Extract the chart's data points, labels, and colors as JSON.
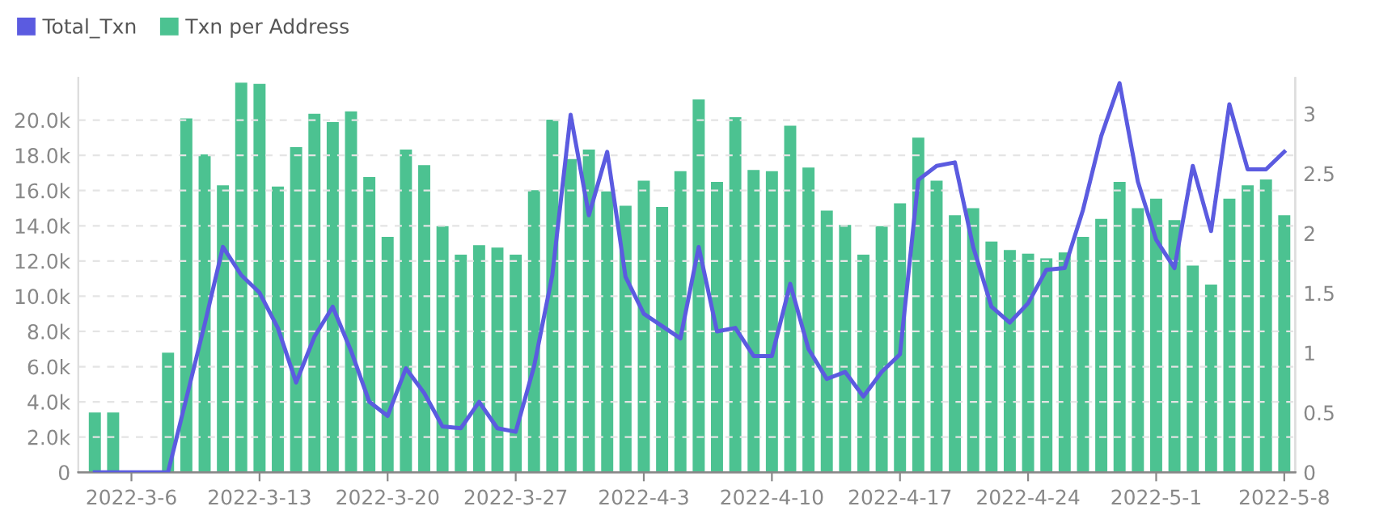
{
  "chart_data": {
    "type": "bar",
    "categories": [
      null,
      null,
      "2022-3-6",
      null,
      null,
      null,
      null,
      null,
      null,
      "2022-3-13",
      null,
      null,
      null,
      null,
      null,
      null,
      "2022-3-20",
      null,
      null,
      null,
      null,
      null,
      null,
      "2022-3-27",
      null,
      null,
      null,
      null,
      null,
      null,
      "2022-4-3",
      null,
      null,
      null,
      null,
      null,
      null,
      "2022-4-10",
      null,
      null,
      null,
      null,
      null,
      null,
      "2022-4-17",
      null,
      null,
      null,
      null,
      null,
      null,
      "2022-4-24",
      null,
      null,
      null,
      null,
      null,
      null,
      "2022-5-1",
      null,
      null,
      null,
      null,
      null,
      null,
      "2022-5-8"
    ],
    "series": [
      {
        "name": "Total_Txn",
        "type": "line",
        "axis": "y",
        "color": "#5b5be0",
        "values": [
          0,
          0,
          0,
          0,
          0,
          4200,
          8400,
          12800,
          11200,
          10200,
          8200,
          5100,
          7700,
          9400,
          6900,
          4000,
          3200,
          5900,
          4500,
          2600,
          2500,
          4000,
          2500,
          2300,
          6000,
          11200,
          20300,
          14600,
          18200,
          11100,
          9000,
          8300,
          7600,
          12800,
          8000,
          8200,
          6600,
          6600,
          10700,
          7000,
          5300,
          5700,
          4300,
          5700,
          6700,
          16600,
          17400,
          17600,
          12800,
          9400,
          8500,
          9600,
          11500,
          11600,
          14900,
          19100,
          22100,
          16500,
          13200,
          11600,
          17400,
          13700,
          20900,
          17200,
          17200,
          18200
        ]
      },
      {
        "name": "Txn per Address",
        "type": "bar",
        "axis": "y2",
        "color": "#4cc291",
        "values": [
          0.5,
          0.5,
          0,
          0,
          1.0,
          2.96,
          2.66,
          2.4,
          3.26,
          3.25,
          2.39,
          2.72,
          3.0,
          2.93,
          3.02,
          2.47,
          1.97,
          2.7,
          2.57,
          2.06,
          1.82,
          1.9,
          1.88,
          1.82,
          2.36,
          2.95,
          2.62,
          2.7,
          2.35,
          2.23,
          2.44,
          2.22,
          2.52,
          3.12,
          2.43,
          2.97,
          2.53,
          2.52,
          2.9,
          2.55,
          2.19,
          2.07,
          1.82,
          2.06,
          2.25,
          2.8,
          2.44,
          2.15,
          2.21,
          1.93,
          1.86,
          1.83,
          1.79,
          1.84,
          1.97,
          2.12,
          2.43,
          2.21,
          2.29,
          2.11,
          1.73,
          1.57,
          2.29,
          2.4,
          2.45,
          2.15
        ]
      }
    ],
    "ylim": [
      0,
      22400
    ],
    "yticks": [
      0,
      {
        "value": 2000,
        "label": "2.0k"
      },
      {
        "value": 4000,
        "label": "4.0k"
      },
      {
        "value": 6000,
        "label": "6.0k"
      },
      {
        "value": 8000,
        "label": "8.0k"
      },
      {
        "value": 10000,
        "label": "10.0k"
      },
      {
        "value": 12000,
        "label": "12.0k"
      },
      {
        "value": 14000,
        "label": "14.0k"
      },
      {
        "value": 16000,
        "label": "16.0k"
      },
      {
        "value": 18000,
        "label": "18.0k"
      },
      {
        "value": 20000,
        "label": "20.0k"
      }
    ],
    "y2lim": [
      0,
      3.3
    ],
    "y2ticks": [
      0,
      0.5,
      1,
      1.5,
      2,
      2.5,
      3
    ],
    "grid": "y",
    "legend": "top left",
    "marker": "none",
    "line_style": "solid"
  }
}
